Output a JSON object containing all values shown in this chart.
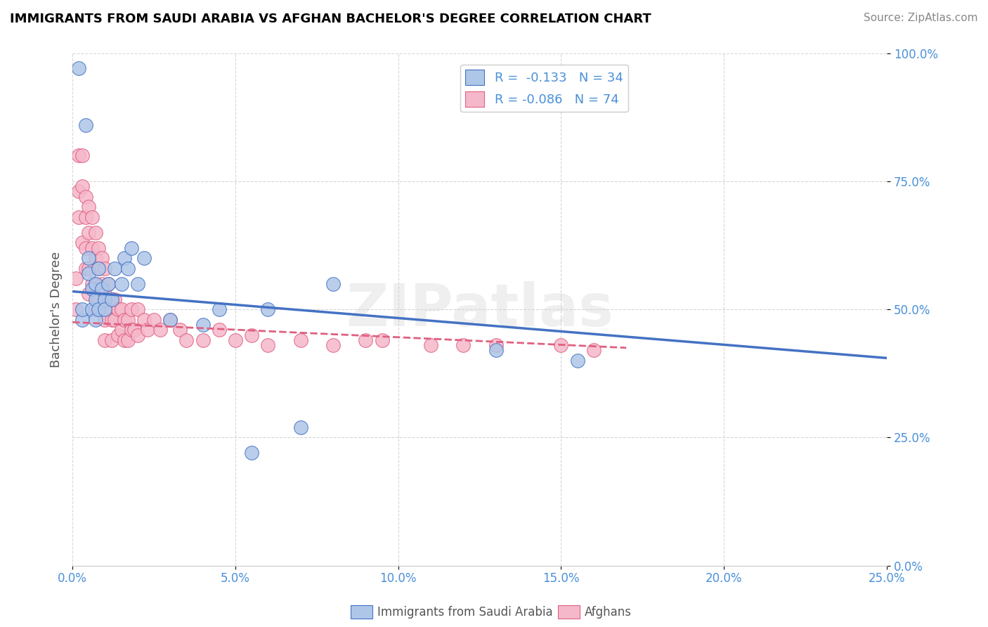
{
  "title": "IMMIGRANTS FROM SAUDI ARABIA VS AFGHAN BACHELOR'S DEGREE CORRELATION CHART",
  "source": "Source: ZipAtlas.com",
  "ylabel": "Bachelor's Degree",
  "legend1_label": "R =  -0.133   N = 34",
  "legend2_label": "R = -0.086   N = 74",
  "watermark": "ZIPatlas",
  "saudi_color": "#aec6e8",
  "afghan_color": "#f5b8cb",
  "saudi_line_color": "#4472c4",
  "afghan_line_color": "#e06080",
  "saudi_scatter": {
    "x": [
      0.002,
      0.003,
      0.003,
      0.004,
      0.005,
      0.005,
      0.006,
      0.006,
      0.007,
      0.007,
      0.007,
      0.008,
      0.008,
      0.009,
      0.01,
      0.01,
      0.011,
      0.012,
      0.013,
      0.015,
      0.016,
      0.017,
      0.018,
      0.02,
      0.022,
      0.03,
      0.04,
      0.045,
      0.055,
      0.06,
      0.07,
      0.08,
      0.13,
      0.155
    ],
    "y": [
      0.97,
      0.48,
      0.5,
      0.86,
      0.6,
      0.57,
      0.54,
      0.5,
      0.55,
      0.52,
      0.48,
      0.58,
      0.5,
      0.54,
      0.52,
      0.5,
      0.55,
      0.52,
      0.58,
      0.55,
      0.6,
      0.58,
      0.62,
      0.55,
      0.6,
      0.48,
      0.47,
      0.5,
      0.22,
      0.5,
      0.27,
      0.55,
      0.42,
      0.4
    ]
  },
  "afghan_scatter": {
    "x": [
      0.001,
      0.001,
      0.002,
      0.002,
      0.002,
      0.003,
      0.003,
      0.003,
      0.004,
      0.004,
      0.004,
      0.004,
      0.005,
      0.005,
      0.005,
      0.005,
      0.006,
      0.006,
      0.006,
      0.007,
      0.007,
      0.007,
      0.007,
      0.008,
      0.008,
      0.008,
      0.009,
      0.009,
      0.009,
      0.01,
      0.01,
      0.01,
      0.01,
      0.011,
      0.011,
      0.012,
      0.012,
      0.012,
      0.013,
      0.013,
      0.014,
      0.014,
      0.015,
      0.015,
      0.016,
      0.016,
      0.017,
      0.017,
      0.018,
      0.018,
      0.019,
      0.02,
      0.02,
      0.022,
      0.023,
      0.025,
      0.027,
      0.03,
      0.033,
      0.035,
      0.04,
      0.045,
      0.05,
      0.055,
      0.06,
      0.07,
      0.08,
      0.09,
      0.095,
      0.11,
      0.12,
      0.13,
      0.15,
      0.16
    ],
    "y": [
      0.5,
      0.56,
      0.8,
      0.73,
      0.68,
      0.8,
      0.74,
      0.63,
      0.72,
      0.68,
      0.62,
      0.58,
      0.7,
      0.65,
      0.58,
      0.53,
      0.68,
      0.62,
      0.55,
      0.65,
      0.6,
      0.55,
      0.5,
      0.62,
      0.58,
      0.52,
      0.6,
      0.55,
      0.5,
      0.58,
      0.53,
      0.48,
      0.44,
      0.55,
      0.5,
      0.52,
      0.48,
      0.44,
      0.52,
      0.48,
      0.5,
      0.45,
      0.5,
      0.46,
      0.48,
      0.44,
      0.48,
      0.44,
      0.5,
      0.46,
      0.46,
      0.5,
      0.45,
      0.48,
      0.46,
      0.48,
      0.46,
      0.48,
      0.46,
      0.44,
      0.44,
      0.46,
      0.44,
      0.45,
      0.43,
      0.44,
      0.43,
      0.44,
      0.44,
      0.43,
      0.43,
      0.43,
      0.43,
      0.42
    ]
  },
  "saudi_line": {
    "x0": 0.0,
    "y0": 0.535,
    "x1": 0.25,
    "y1": 0.405
  },
  "afghan_line": {
    "x0": 0.0,
    "y0": 0.475,
    "x1": 0.17,
    "y1": 0.425
  },
  "xlim": [
    0.0,
    0.25
  ],
  "ylim": [
    0.0,
    1.0
  ],
  "x_ticks": [
    0.0,
    0.05,
    0.1,
    0.15,
    0.2,
    0.25
  ],
  "y_ticks": [
    0.0,
    0.25,
    0.5,
    0.75,
    1.0
  ]
}
